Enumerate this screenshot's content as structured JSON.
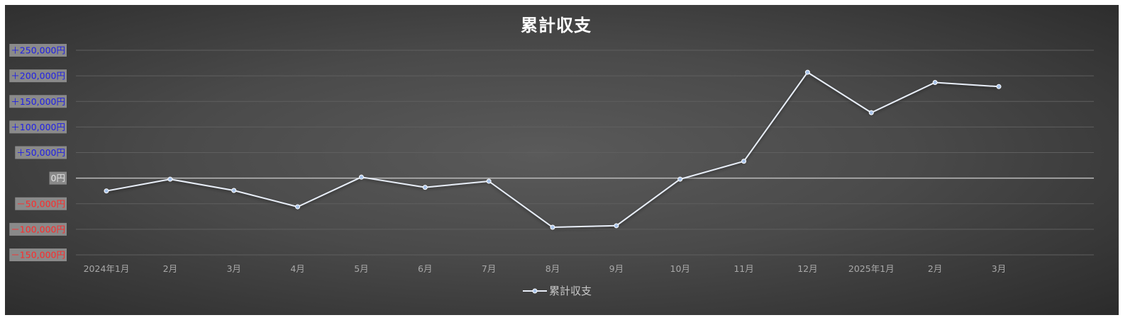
{
  "chart_data": {
    "type": "line",
    "title": "累計収支",
    "xlabel": "",
    "ylabel": "",
    "categories": [
      "2024年1月",
      "2月",
      "3月",
      "4月",
      "5月",
      "6月",
      "7月",
      "8月",
      "9月",
      "10月",
      "11月",
      "12月",
      "2025年1月",
      "2月",
      "3月"
    ],
    "series": [
      {
        "name": "累計収支",
        "values": [
          -25000,
          -2000,
          -24000,
          -56000,
          2000,
          -18000,
          -6000,
          -96000,
          -93000,
          -2000,
          33000,
          207000,
          128000,
          187000,
          179000
        ],
        "color": "#e8eef8",
        "marker_color": "#a9c4ea"
      }
    ],
    "ylim": [
      -150000,
      250000
    ],
    "yticks": [
      {
        "value": 250000,
        "label": "＋250,000円",
        "color": "#1e1ee6"
      },
      {
        "value": 200000,
        "label": "＋200,000円",
        "color": "#1e1ee6"
      },
      {
        "value": 150000,
        "label": "＋150,000円",
        "color": "#1e1ee6"
      },
      {
        "value": 100000,
        "label": "＋100,000円",
        "color": "#1e1ee6"
      },
      {
        "value": 50000,
        "label": "＋50,000円",
        "color": "#1e1ee6"
      },
      {
        "value": 0,
        "label": "0円",
        "color": "#e0e0e0"
      },
      {
        "value": -50000,
        "label": "－50,000円",
        "color": "#ff2a2a"
      },
      {
        "value": -100000,
        "label": "－100,000円",
        "color": "#ff2a2a"
      },
      {
        "value": -150000,
        "label": "－150,000円",
        "color": "#ff2a2a"
      }
    ],
    "grid": true,
    "legend": "bottom",
    "colors": {
      "tick_label_background": "#8a8a8a",
      "grid": "#5f5f5f",
      "zero_line": "#bdbdbd"
    }
  }
}
